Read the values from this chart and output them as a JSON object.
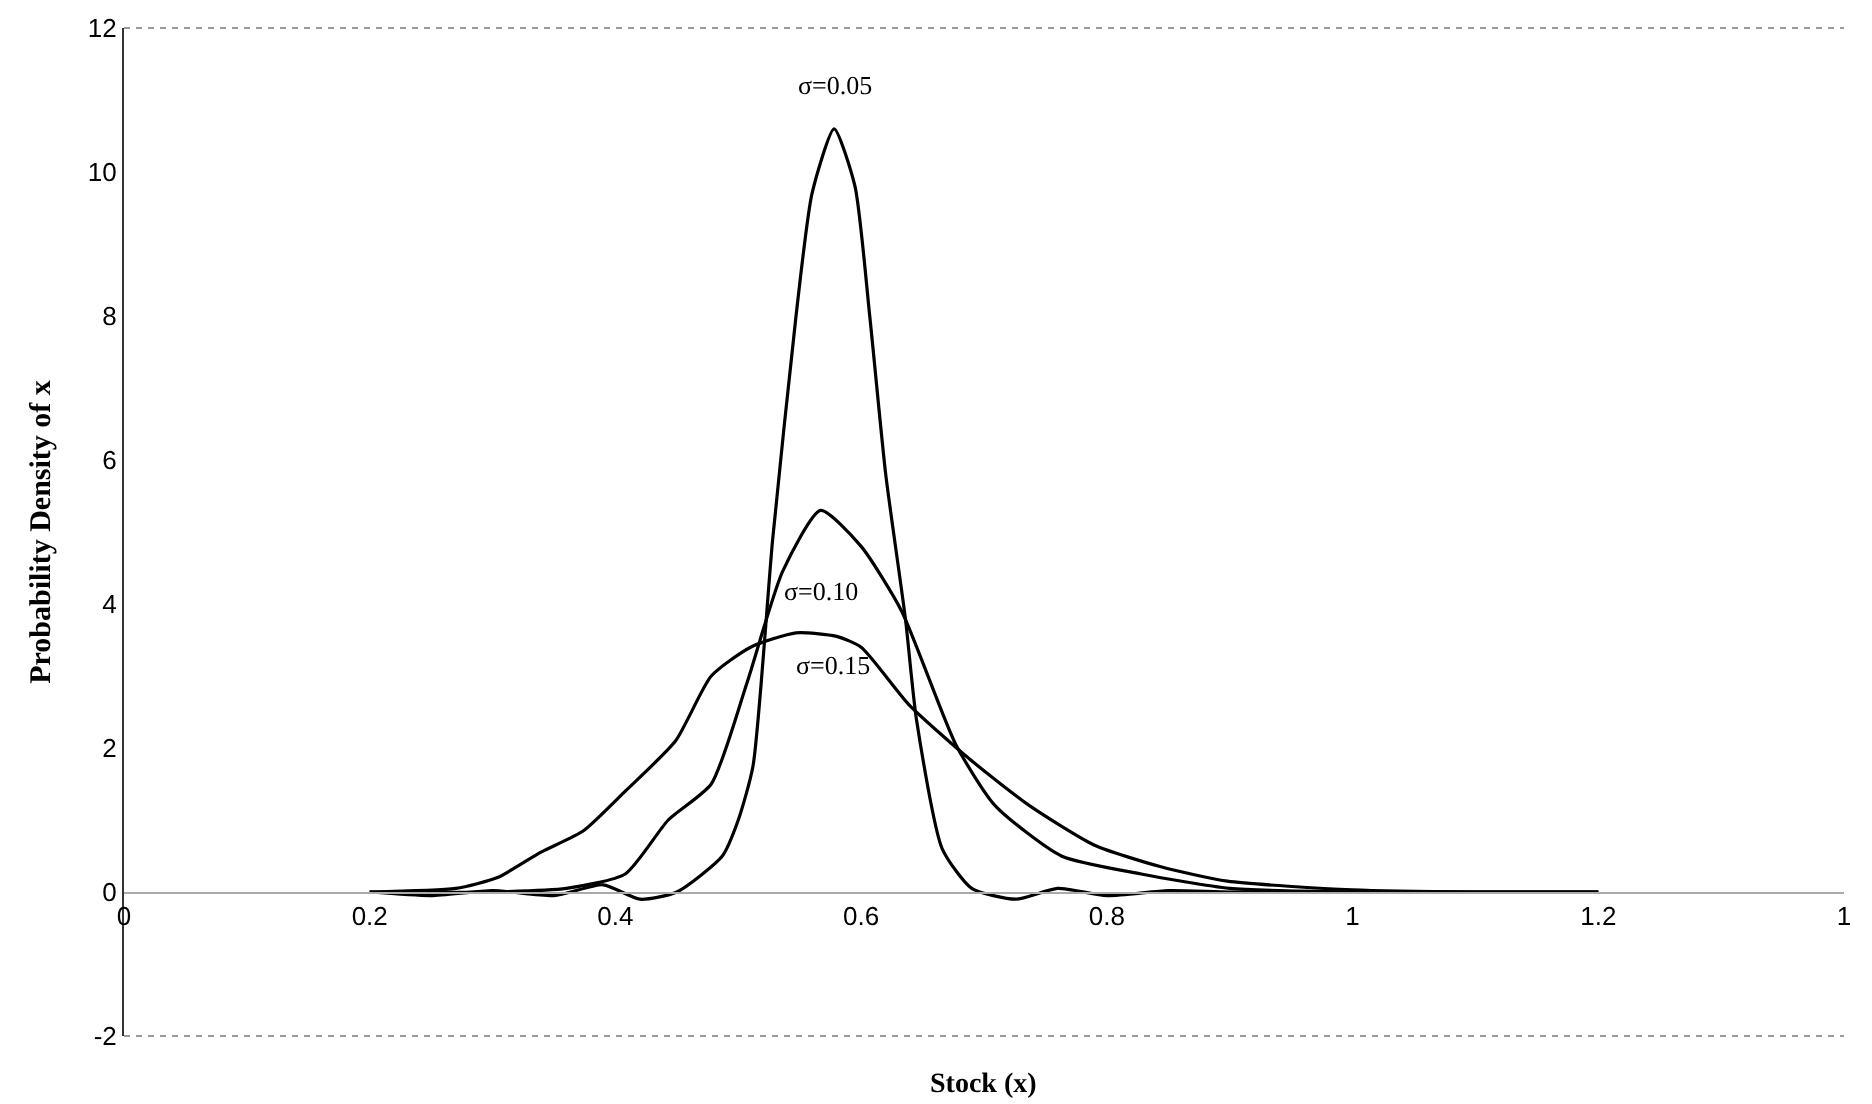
{
  "chart_data": {
    "type": "line",
    "xlabel": "Stock (x)",
    "ylabel": "Probability Density of x",
    "xlim": [
      0,
      1.4
    ],
    "xticks": [
      0,
      0.2,
      0.4,
      0.6,
      0.8,
      1,
      1.2,
      {
        "value": 1.4,
        "label": "1"
      }
    ],
    "ylim": [
      -2,
      12
    ],
    "yticks": [
      -2,
      0,
      2,
      4,
      6,
      8,
      10,
      12
    ],
    "grid": false,
    "legend": false,
    "marker": "none",
    "line_style": "solid",
    "series": [
      {
        "name": "σ=0.05",
        "color": "#000000",
        "x": [
          0.2,
          0.25,
          0.3,
          0.35,
          0.39,
          0.42,
          0.45,
          0.487,
          0.5,
          0.512,
          0.528,
          0.547,
          0.56,
          0.578,
          0.595,
          0.607,
          0.62,
          0.636,
          0.645,
          0.666,
          0.69,
          0.726,
          0.76,
          0.8,
          0.85,
          0.9,
          1.0,
          1.1,
          1.2
        ],
        "values": [
          0,
          -0.05,
          0.02,
          -0.05,
          0.1,
          -0.1,
          0,
          0.5,
          1.0,
          1.75,
          4.9,
          8.0,
          9.7,
          10.6,
          9.8,
          8.0,
          5.8,
          3.8,
          2.4,
          0.6,
          0.05,
          -0.1,
          0.05,
          -0.05,
          0.02,
          0,
          0,
          0,
          0
        ]
      },
      {
        "name": "σ=0.10",
        "color": "#000000",
        "x": [
          0.2,
          0.3,
          0.36,
          0.408,
          0.443,
          0.478,
          0.507,
          0.536,
          0.567,
          0.6,
          0.633,
          0.677,
          0.709,
          0.763,
          0.828,
          0.9,
          1.0,
          1.1,
          1.2
        ],
        "values": [
          0,
          0,
          0.05,
          0.25,
          1.0,
          1.5,
          2.9,
          4.45,
          5.3,
          4.8,
          3.9,
          2.05,
          1.2,
          0.5,
          0.25,
          0.05,
          0,
          0,
          0
        ]
      },
      {
        "name": "σ=0.15",
        "color": "#000000",
        "x": [
          0.2,
          0.27,
          0.304,
          0.339,
          0.374,
          0.408,
          0.449,
          0.478,
          0.51,
          0.547,
          0.58,
          0.6,
          0.639,
          0.688,
          0.737,
          0.79,
          0.844,
          0.898,
          1.0,
          1.1,
          1.2
        ],
        "values": [
          0,
          0.05,
          0.2,
          0.55,
          0.85,
          1.4,
          2.1,
          3.0,
          3.4,
          3.6,
          3.55,
          3.4,
          2.6,
          1.85,
          1.2,
          0.65,
          0.35,
          0.15,
          0.03,
          0,
          0
        ]
      }
    ]
  }
}
